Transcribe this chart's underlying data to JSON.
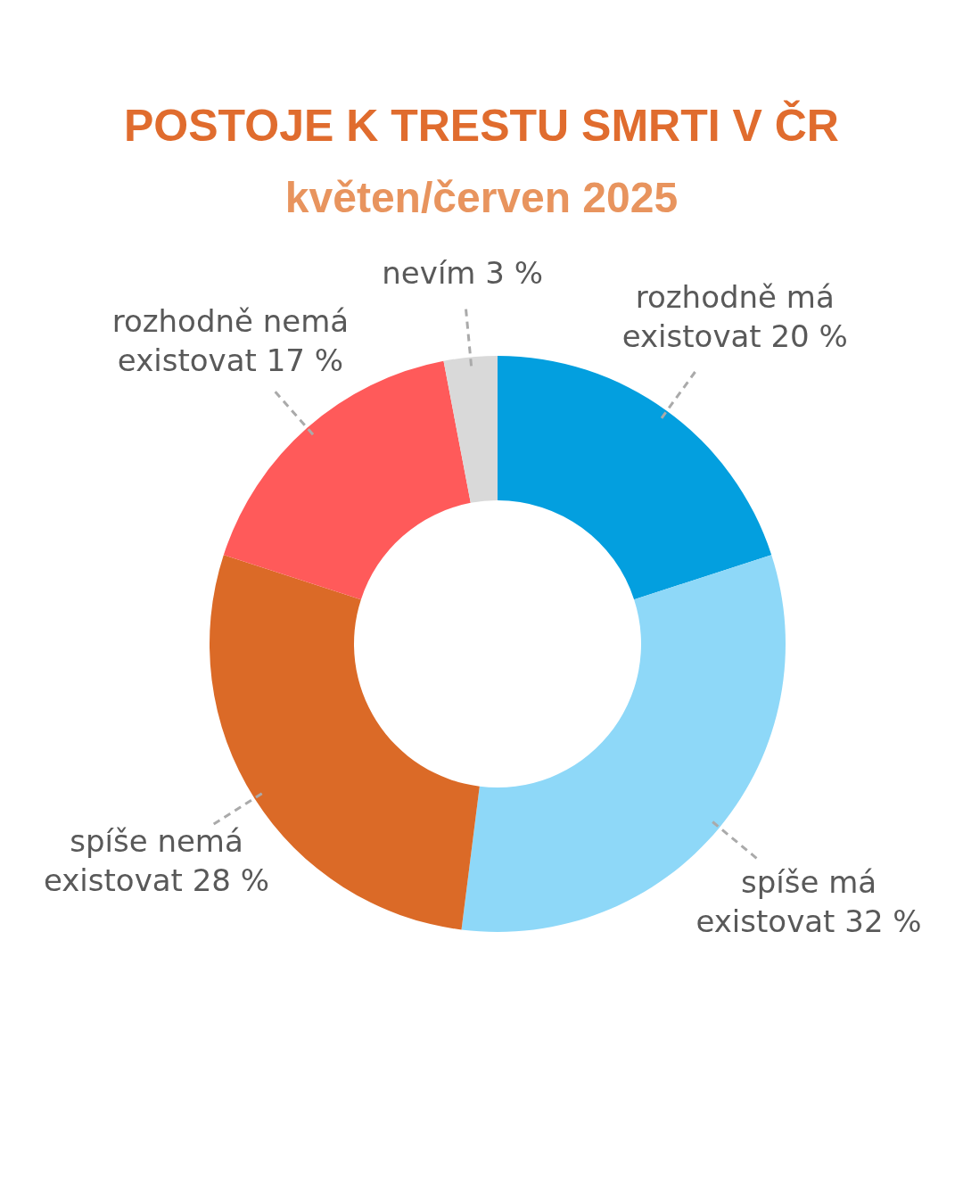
{
  "chart_data": {
    "type": "donut",
    "title": "POSTOJE K TRESTU SMRTI V ČR",
    "subtitle": "květen/červen 2025",
    "categories": [
      "rozhodně má existovat",
      "spíše má existovat",
      "spíše nemá existovat",
      "rozhodně nemá existovat",
      "nevím"
    ],
    "values": [
      20,
      32,
      28,
      17,
      3
    ],
    "value_labels": [
      "20 %",
      "32 %",
      "28 %",
      "17 %",
      "3 %"
    ],
    "colors": [
      "#039fdf",
      "#8ed8f8",
      "#db6a27",
      "#ff5a5a",
      "#d9d9d9"
    ]
  }
}
